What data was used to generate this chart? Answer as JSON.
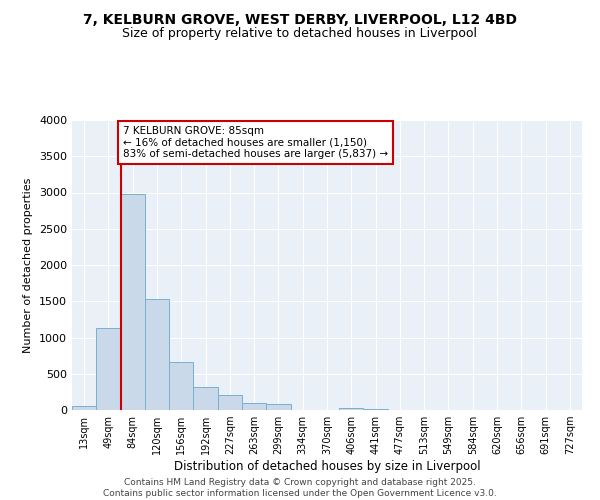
{
  "title_line1": "7, KELBURN GROVE, WEST DERBY, LIVERPOOL, L12 4BD",
  "title_line2": "Size of property relative to detached houses in Liverpool",
  "xlabel": "Distribution of detached houses by size in Liverpool",
  "ylabel": "Number of detached properties",
  "categories": [
    "13sqm",
    "49sqm",
    "84sqm",
    "120sqm",
    "156sqm",
    "192sqm",
    "227sqm",
    "263sqm",
    "299sqm",
    "334sqm",
    "370sqm",
    "406sqm",
    "441sqm",
    "477sqm",
    "513sqm",
    "549sqm",
    "584sqm",
    "620sqm",
    "656sqm",
    "691sqm",
    "727sqm"
  ],
  "values": [
    50,
    1130,
    2980,
    1530,
    660,
    320,
    210,
    100,
    80,
    0,
    0,
    30,
    20,
    0,
    0,
    0,
    0,
    0,
    0,
    0,
    0
  ],
  "bar_color": "#c9d9ea",
  "bar_edge_color": "#7aaed0",
  "vline_color": "#cc0000",
  "vline_bar_index": 2,
  "annotation_text": "7 KELBURN GROVE: 85sqm\n← 16% of detached houses are smaller (1,150)\n83% of semi-detached houses are larger (5,837) →",
  "annotation_box_color": "#cc0000",
  "ylim": [
    0,
    4000
  ],
  "yticks": [
    0,
    500,
    1000,
    1500,
    2000,
    2500,
    3000,
    3500,
    4000
  ],
  "background_color": "#eaf0f7",
  "grid_color": "#ffffff",
  "footer_line1": "Contains HM Land Registry data © Crown copyright and database right 2025.",
  "footer_line2": "Contains public sector information licensed under the Open Government Licence v3.0."
}
